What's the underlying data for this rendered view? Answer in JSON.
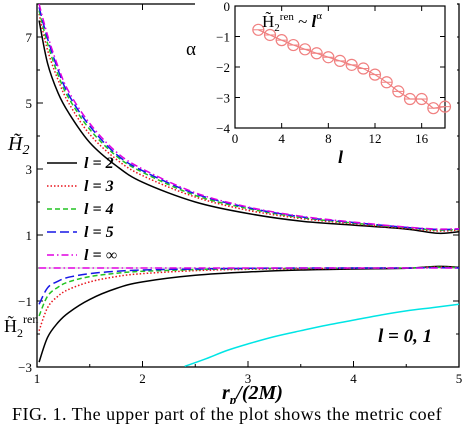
{
  "chart_data": [
    {
      "type": "line",
      "xlabel": "r_p/(2M)",
      "xlim": [
        1,
        5
      ],
      "ylim": [
        -3,
        8
      ],
      "xticks": [
        "1",
        "2",
        "3",
        "4",
        "5"
      ],
      "yticks": [
        "-3",
        "-1",
        "1",
        "3",
        "5",
        "7"
      ],
      "upper_ylabel": "H̃₂",
      "lower_ylabel": "H̃₂ren",
      "annotation": "l = 0, 1",
      "legend_position": "left",
      "series": [
        {
          "name": "l = 2",
          "color": "#000000",
          "style": "solid",
          "x": [
            1.02,
            1.1,
            1.2,
            1.3,
            1.5,
            1.75,
            2.0,
            2.5,
            3.0,
            3.5,
            4.0,
            4.5,
            4.8,
            5.0
          ],
          "upper": [
            7.5,
            6.2,
            5.3,
            4.7,
            3.8,
            3.1,
            2.6,
            2.0,
            1.65,
            1.42,
            1.3,
            1.18,
            1.05,
            1.1
          ],
          "lower": [
            -2.85,
            -2.1,
            -1.65,
            -1.35,
            -0.95,
            -0.62,
            -0.42,
            -0.22,
            -0.12,
            -0.06,
            -0.03,
            -0.01,
            0.05,
            0.02
          ]
        },
        {
          "name": "l = 3",
          "color": "#e8141c",
          "style": "dotted",
          "x": [
            1.02,
            1.1,
            1.2,
            1.3,
            1.5,
            1.75,
            2.0,
            2.5,
            3.0,
            3.5,
            4.0,
            4.5,
            4.8,
            5.0
          ],
          "upper": [
            7.7,
            6.6,
            5.7,
            5.0,
            4.05,
            3.3,
            2.8,
            2.15,
            1.75,
            1.5,
            1.34,
            1.2,
            1.12,
            1.15
          ],
          "lower": [
            -1.9,
            -1.2,
            -0.85,
            -0.65,
            -0.42,
            -0.26,
            -0.17,
            -0.08,
            -0.04,
            -0.02,
            -0.01,
            0.0,
            0.03,
            0.01
          ]
        },
        {
          "name": "l = 4",
          "color": "#22c322",
          "style": "dashed",
          "x": [
            1.02,
            1.1,
            1.2,
            1.3,
            1.5,
            1.75,
            2.0,
            2.5,
            3.0,
            3.5,
            4.0,
            4.5,
            4.8,
            5.0
          ],
          "upper": [
            7.8,
            6.8,
            5.85,
            5.15,
            4.2,
            3.4,
            2.9,
            2.2,
            1.8,
            1.53,
            1.36,
            1.22,
            1.15,
            1.17
          ],
          "lower": [
            -1.45,
            -0.85,
            -0.58,
            -0.42,
            -0.26,
            -0.16,
            -0.1,
            -0.05,
            -0.02,
            -0.01,
            0.0,
            0.0,
            0.02,
            0.01
          ]
        },
        {
          "name": "l = 5",
          "color": "#1717e6",
          "style": "longdash",
          "x": [
            1.02,
            1.1,
            1.2,
            1.3,
            1.5,
            1.75,
            2.0,
            2.5,
            3.0,
            3.5,
            4.0,
            4.5,
            4.8,
            5.0
          ],
          "upper": [
            7.9,
            6.95,
            6.0,
            5.25,
            4.3,
            3.45,
            2.95,
            2.25,
            1.83,
            1.55,
            1.38,
            1.23,
            1.17,
            1.18
          ],
          "lower": [
            -1.1,
            -0.6,
            -0.4,
            -0.28,
            -0.17,
            -0.1,
            -0.06,
            -0.03,
            -0.01,
            0.0,
            0.0,
            0.0,
            0.01,
            0.0
          ]
        },
        {
          "name": "l = ∞",
          "color": "#e000e0",
          "style": "dashdot",
          "x": [
            1.02,
            1.1,
            1.2,
            1.3,
            1.5,
            1.75,
            2.0,
            2.5,
            3.0,
            3.5,
            4.0,
            4.5,
            4.8,
            5.0
          ],
          "upper": [
            8.0,
            7.05,
            6.1,
            5.35,
            4.38,
            3.52,
            3.0,
            2.28,
            1.85,
            1.57,
            1.39,
            1.24,
            1.18,
            1.19
          ],
          "lower": [
            0.0,
            0.0,
            0.0,
            0.0,
            0.0,
            0.0,
            0.0,
            0.0,
            0.0,
            0.0,
            0.0,
            0.0,
            0.0,
            0.0
          ]
        },
        {
          "name": "",
          "color": "#00e5e5",
          "style": "solid",
          "x": [
            2.4,
            2.6,
            2.8,
            3.0,
            3.25,
            3.5,
            3.75,
            4.0,
            4.25,
            4.5,
            4.75,
            5.0
          ],
          "lower": [
            -2.98,
            -2.75,
            -2.5,
            -2.3,
            -2.08,
            -1.9,
            -1.73,
            -1.58,
            -1.43,
            -1.3,
            -1.2,
            -1.1
          ]
        }
      ]
    },
    {
      "type": "scatter",
      "title": "H̃₂ren ~ lα",
      "xlabel": "l",
      "ylabel": "α",
      "xlim": [
        0,
        18
      ],
      "ylim": [
        -4,
        0
      ],
      "xticks": [
        "0",
        "4",
        "8",
        "12",
        "16"
      ],
      "yticks": [
        "-4",
        "-3",
        "-2",
        "-1",
        "0"
      ],
      "marker_color": "#f08080",
      "series": [
        {
          "x": [
            2,
            3,
            4,
            5,
            6,
            7,
            8,
            9,
            10,
            11,
            12,
            13,
            14,
            15,
            16,
            17,
            18
          ],
          "y": [
            -0.78,
            -0.95,
            -1.12,
            -1.28,
            -1.42,
            -1.55,
            -1.68,
            -1.8,
            -1.93,
            -2.05,
            -2.25,
            -2.5,
            -2.8,
            -3.05,
            -3.05,
            -3.35,
            -3.3
          ]
        }
      ]
    }
  ],
  "caption": "FIG. 1. The upper part of the plot shows the metric coef"
}
